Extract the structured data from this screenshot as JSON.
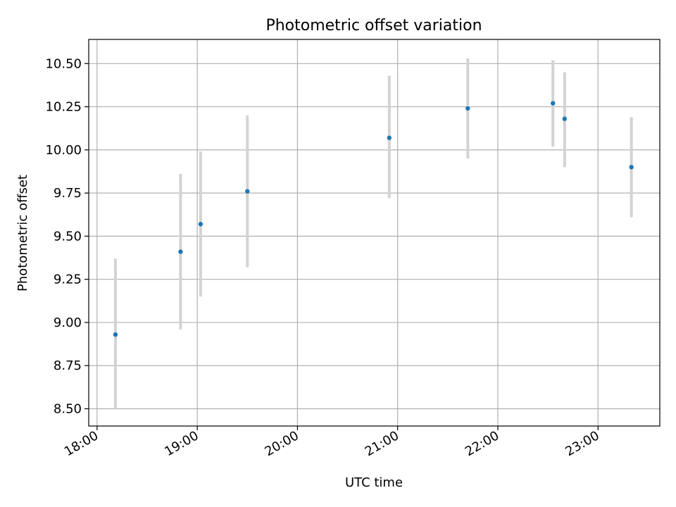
{
  "chart_data": {
    "type": "scatter",
    "title": "Photometric offset variation",
    "xlabel": "UTC time",
    "ylabel": "Photometric offset",
    "x_axis": {
      "kind": "time",
      "range": [
        "17:55",
        "23:37"
      ],
      "ticks": [
        "18:00",
        "19:00",
        "20:00",
        "21:00",
        "22:00",
        "23:00"
      ]
    },
    "y_axis": {
      "range": [
        8.4,
        10.64
      ],
      "ticks": [
        "8.50",
        "8.75",
        "9.00",
        "9.25",
        "9.50",
        "9.75",
        "10.00",
        "10.25",
        "10.50"
      ]
    },
    "grid": true,
    "legend": "none",
    "colors": {
      "marker": "#1f77b4",
      "errorbar": "#d3d3d3",
      "grid": "#b0b0b0"
    },
    "points": [
      {
        "time": "18:11",
        "y": 8.93,
        "ylow": 8.5,
        "yhigh": 9.37
      },
      {
        "time": "18:50",
        "y": 9.41,
        "ylow": 8.96,
        "yhigh": 9.86
      },
      {
        "time": "19:02",
        "y": 9.57,
        "ylow": 9.15,
        "yhigh": 9.99
      },
      {
        "time": "19:30",
        "y": 9.76,
        "ylow": 9.32,
        "yhigh": 10.2
      },
      {
        "time": "20:55",
        "y": 10.07,
        "ylow": 9.72,
        "yhigh": 10.43
      },
      {
        "time": "21:42",
        "y": 10.24,
        "ylow": 9.95,
        "yhigh": 10.53
      },
      {
        "time": "22:33",
        "y": 10.27,
        "ylow": 10.02,
        "yhigh": 10.52
      },
      {
        "time": "22:40",
        "y": 10.18,
        "ylow": 9.9,
        "yhigh": 10.45
      },
      {
        "time": "23:20",
        "y": 9.9,
        "ylow": 9.61,
        "yhigh": 10.19
      }
    ]
  }
}
